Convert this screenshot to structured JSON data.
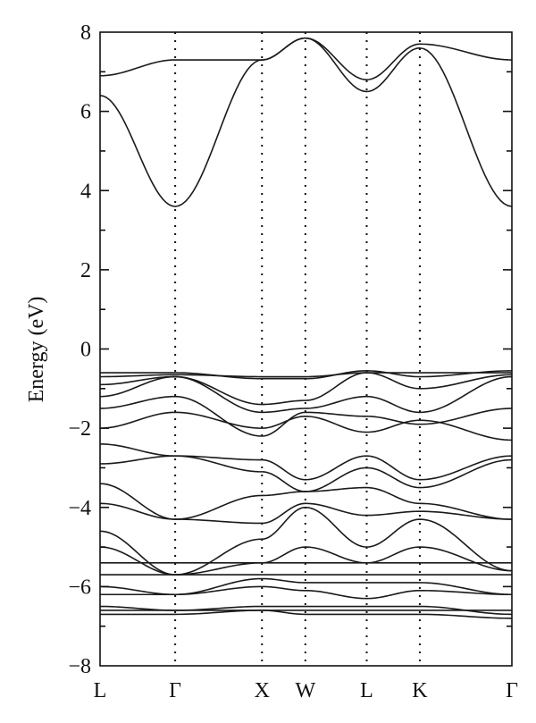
{
  "chart_data": {
    "type": "line",
    "ylabel": "Energy (eV)",
    "xlabel": "",
    "ylim": [
      -8,
      8
    ],
    "yticks": [
      -8,
      -6,
      -4,
      -2,
      0,
      2,
      4,
      6,
      8
    ],
    "ytick_labels": [
      "−8",
      "−6",
      "−4",
      "−2",
      "0",
      "2",
      "4",
      "6",
      "8"
    ],
    "kpath": [
      {
        "label": "L",
        "x": 0.0
      },
      {
        "label": "Γ",
        "x": 0.866
      },
      {
        "label": "X",
        "x": 1.866
      },
      {
        "label": "W",
        "x": 2.366
      },
      {
        "label": "L",
        "x": 3.073
      },
      {
        "label": "K",
        "x": 3.685
      },
      {
        "label": "Γ",
        "x": 4.746
      }
    ],
    "xlim": [
      0,
      4.746
    ],
    "grid": false,
    "series": [
      {
        "x": [
          0,
          0.866,
          1.866,
          2.366,
          3.073,
          3.685,
          4.746
        ],
        "values": [
          6.4,
          3.6,
          7.3,
          7.85,
          6.5,
          7.6,
          3.6
        ]
      },
      {
        "x": [
          0,
          0.866,
          1.866,
          2.366,
          3.073,
          3.685,
          4.746
        ],
        "values": [
          6.9,
          7.3,
          7.3,
          7.85,
          6.8,
          7.7,
          7.3
        ]
      },
      {
        "x": [
          0,
          0.866,
          1.866,
          2.366,
          3.073,
          3.685,
          4.746
        ],
        "values": [
          -0.6,
          -0.6,
          -0.75,
          -0.75,
          -0.55,
          -0.7,
          -0.55
        ]
      },
      {
        "x": [
          0,
          0.866,
          1.866,
          2.366,
          3.073,
          3.685,
          4.746
        ],
        "values": [
          -0.7,
          -0.65,
          -0.7,
          -0.7,
          -0.6,
          -0.6,
          -0.6
        ]
      },
      {
        "x": [
          0,
          0.866,
          1.866,
          2.366,
          3.073,
          3.685,
          4.746
        ],
        "values": [
          -0.9,
          -0.7,
          -1.4,
          -1.3,
          -0.6,
          -1.0,
          -0.65
        ]
      },
      {
        "x": [
          0,
          0.866,
          1.866,
          2.366,
          3.073,
          3.685,
          4.746
        ],
        "values": [
          -1.2,
          -0.7,
          -1.6,
          -1.5,
          -1.2,
          -1.6,
          -0.7
        ]
      },
      {
        "x": [
          0,
          0.866,
          1.866,
          2.366,
          3.073,
          3.685,
          4.746
        ],
        "values": [
          -1.5,
          -1.2,
          -2.2,
          -1.6,
          -1.7,
          -1.9,
          -1.5
        ]
      },
      {
        "x": [
          0,
          0.866,
          1.866,
          2.366,
          3.073,
          3.685,
          4.746
        ],
        "values": [
          -2.0,
          -1.6,
          -2.0,
          -1.7,
          -2.1,
          -1.8,
          -2.3
        ]
      },
      {
        "x": [
          0,
          0.866,
          1.866,
          2.366,
          3.073,
          3.685,
          4.746
        ],
        "values": [
          -2.4,
          -2.7,
          -2.8,
          -3.3,
          -2.7,
          -3.3,
          -2.7
        ]
      },
      {
        "x": [
          0,
          0.866,
          1.866,
          2.366,
          3.073,
          3.685,
          4.746
        ],
        "values": [
          -2.9,
          -2.7,
          -3.1,
          -3.6,
          -3.0,
          -3.5,
          -2.8
        ]
      },
      {
        "x": [
          0,
          0.866,
          1.866,
          2.366,
          3.073,
          3.685,
          4.746
        ],
        "values": [
          -3.4,
          -4.3,
          -3.7,
          -3.6,
          -3.5,
          -3.9,
          -4.3
        ]
      },
      {
        "x": [
          0,
          0.866,
          1.866,
          2.366,
          3.073,
          3.685,
          4.746
        ],
        "values": [
          -3.9,
          -4.3,
          -4.4,
          -3.9,
          -4.2,
          -4.1,
          -4.3
        ]
      },
      {
        "x": [
          0,
          0.866,
          1.866,
          2.366,
          3.073,
          3.685,
          4.746
        ],
        "values": [
          -4.6,
          -5.7,
          -4.8,
          -4.0,
          -5.0,
          -4.3,
          -5.6
        ]
      },
      {
        "x": [
          0,
          0.866,
          1.866,
          2.366,
          3.073,
          3.685,
          4.746
        ],
        "values": [
          -5.0,
          -5.7,
          -5.4,
          -5.0,
          -5.4,
          -5.0,
          -5.6
        ]
      },
      {
        "x": [
          0,
          0.866,
          1.866,
          2.366,
          3.073,
          3.685,
          4.746
        ],
        "values": [
          -5.4,
          -5.4,
          -5.4,
          -5.4,
          -5.4,
          -5.4,
          -5.4
        ]
      },
      {
        "x": [
          0,
          0.866,
          1.866,
          2.366,
          3.073,
          3.685,
          4.746
        ],
        "values": [
          -5.7,
          -5.7,
          -5.7,
          -5.7,
          -5.7,
          -5.7,
          -5.7
        ]
      },
      {
        "x": [
          0,
          0.866,
          1.866,
          2.366,
          3.073,
          3.685,
          4.746
        ],
        "values": [
          -6.0,
          -6.2,
          -5.8,
          -5.9,
          -5.9,
          -5.9,
          -6.2
        ]
      },
      {
        "x": [
          0,
          0.866,
          1.866,
          2.366,
          3.073,
          3.685,
          4.746
        ],
        "values": [
          -6.2,
          -6.2,
          -6.0,
          -6.1,
          -6.3,
          -6.1,
          -6.2
        ]
      },
      {
        "x": [
          0,
          0.866,
          1.866,
          2.366,
          3.073,
          3.685,
          4.746
        ],
        "values": [
          -6.5,
          -6.6,
          -6.5,
          -6.5,
          -6.5,
          -6.5,
          -6.7
        ]
      },
      {
        "x": [
          0,
          0.866,
          1.866,
          2.366,
          3.073,
          3.685,
          4.746
        ],
        "values": [
          -6.6,
          -6.6,
          -6.6,
          -6.6,
          -6.6,
          -6.6,
          -6.6
        ]
      },
      {
        "x": [
          0,
          0.866,
          1.866,
          2.366,
          3.073,
          3.685,
          4.746
        ],
        "values": [
          -6.7,
          -6.7,
          -6.6,
          -6.7,
          -6.7,
          -6.7,
          -6.8
        ]
      }
    ]
  }
}
